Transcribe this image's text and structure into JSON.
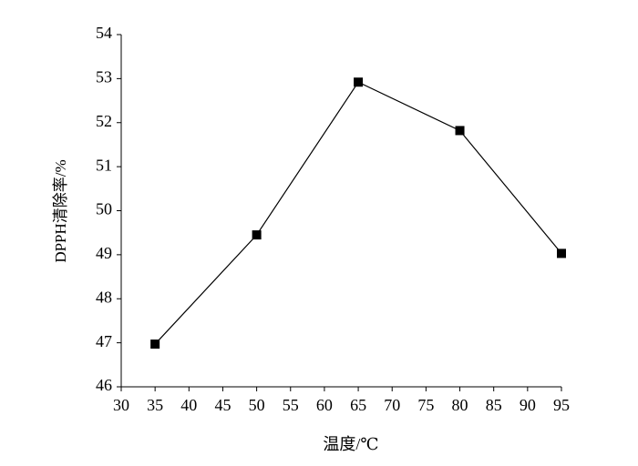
{
  "chart_data": {
    "type": "line",
    "x_label": "温度/℃",
    "y_label": "DPPH清除率/%",
    "x": [
      35,
      50,
      65,
      80,
      95
    ],
    "values": [
      46.97,
      49.45,
      52.92,
      51.82,
      49.03
    ],
    "color": "#000000",
    "marker": "square",
    "xlim": [
      30,
      95
    ],
    "xticks": [
      30,
      35,
      40,
      45,
      50,
      55,
      60,
      65,
      70,
      75,
      80,
      85,
      90,
      95
    ],
    "ylim": [
      46,
      54
    ],
    "yticks": [
      46,
      47,
      48,
      49,
      50,
      51,
      52,
      53,
      54
    ]
  }
}
